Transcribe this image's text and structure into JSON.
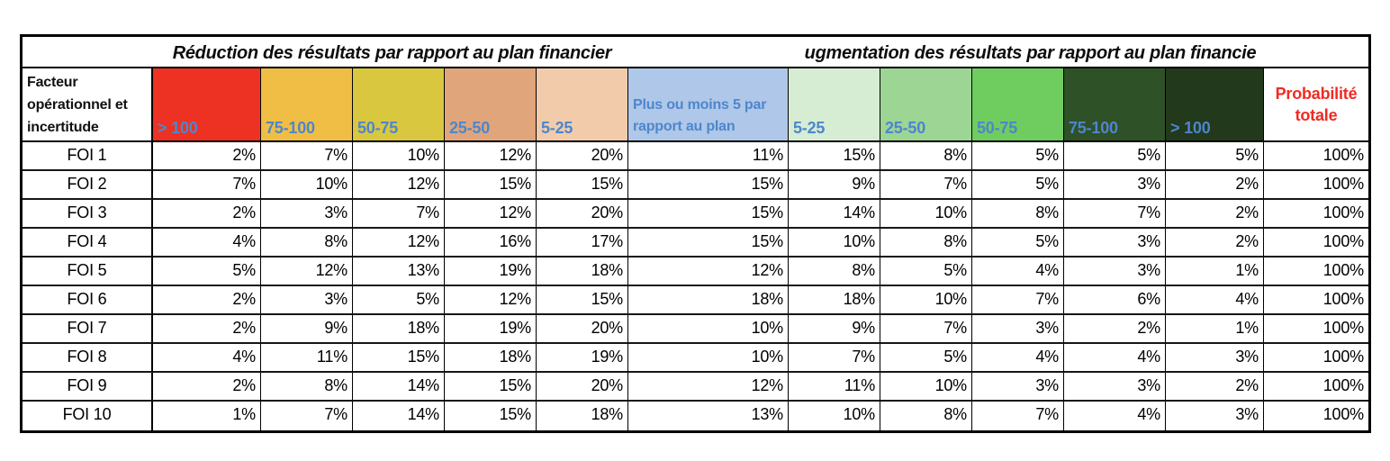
{
  "table": {
    "title_left": "Réduction des résultats par rapport au plan financier",
    "title_right": "ugmentation des résultats par rapport au plan financie",
    "corner_header": "Facteur opérationnel et incertitude",
    "total_header": "Probabilité totale",
    "columns": [
      {
        "label": "> 100",
        "bg": "#ed3223"
      },
      {
        "label": "75-100",
        "bg": "#f0be44"
      },
      {
        "label": "50-75",
        "bg": "#d9c83f"
      },
      {
        "label": "25-50",
        "bg": "#e1a57b"
      },
      {
        "label": "5-25",
        "bg": "#f2ccaa"
      },
      {
        "label": "Plus ou moins 5 par rapport au plan",
        "bg": "#afc7e8"
      },
      {
        "label": "5-25",
        "bg": "#d6edd3"
      },
      {
        "label": "25-50",
        "bg": "#9dd595"
      },
      {
        "label": "50-75",
        "bg": "#6fcd60"
      },
      {
        "label": "75-100",
        "bg": "#2f5127"
      },
      {
        "label": "> 100",
        "bg": "#22391c"
      }
    ],
    "rows": [
      {
        "label": "FOI 1",
        "cells": [
          "2%",
          "7%",
          "10%",
          "12%",
          "20%",
          "11%",
          "15%",
          "8%",
          "5%",
          "5%",
          "5%"
        ],
        "total": "100%"
      },
      {
        "label": "FOI 2",
        "cells": [
          "7%",
          "10%",
          "12%",
          "15%",
          "15%",
          "15%",
          "9%",
          "7%",
          "5%",
          "3%",
          "2%"
        ],
        "total": "100%"
      },
      {
        "label": "FOI 3",
        "cells": [
          "2%",
          "3%",
          "7%",
          "12%",
          "20%",
          "15%",
          "14%",
          "10%",
          "8%",
          "7%",
          "2%"
        ],
        "total": "100%"
      },
      {
        "label": "FOI 4",
        "cells": [
          "4%",
          "8%",
          "12%",
          "16%",
          "17%",
          "15%",
          "10%",
          "8%",
          "5%",
          "3%",
          "2%"
        ],
        "total": "100%"
      },
      {
        "label": "FOI 5",
        "cells": [
          "5%",
          "12%",
          "13%",
          "19%",
          "18%",
          "12%",
          "8%",
          "5%",
          "4%",
          "3%",
          "1%"
        ],
        "total": "100%"
      },
      {
        "label": "FOI 6",
        "cells": [
          "2%",
          "3%",
          "5%",
          "12%",
          "15%",
          "18%",
          "18%",
          "10%",
          "7%",
          "6%",
          "4%"
        ],
        "total": "100%"
      },
      {
        "label": "FOI 7",
        "cells": [
          "2%",
          "9%",
          "18%",
          "19%",
          "20%",
          "10%",
          "9%",
          "7%",
          "3%",
          "2%",
          "1%"
        ],
        "total": "100%"
      },
      {
        "label": "FOI 8",
        "cells": [
          "4%",
          "11%",
          "15%",
          "18%",
          "19%",
          "10%",
          "7%",
          "5%",
          "4%",
          "4%",
          "3%"
        ],
        "total": "100%"
      },
      {
        "label": "FOI 9",
        "cells": [
          "2%",
          "8%",
          "14%",
          "15%",
          "20%",
          "12%",
          "11%",
          "10%",
          "3%",
          "3%",
          "2%"
        ],
        "total": "100%"
      },
      {
        "label": "FOI 10",
        "cells": [
          "1%",
          "7%",
          "14%",
          "15%",
          "18%",
          "13%",
          "10%",
          "8%",
          "7%",
          "4%",
          "3%"
        ],
        "total": "100%"
      }
    ],
    "colors": {
      "header_text_blue": "#4e86cc",
      "total_text_red": "#ef2b22",
      "border_black": "#000000",
      "page_background": "#ffffff"
    }
  },
  "chart_data": {
    "type": "table",
    "title_left_band": "Réduction des résultats par rapport au plan financier",
    "title_right_band": "ugmentation des résultats par rapport au plan financie",
    "row_header": "Facteur opérationnel et incertitude",
    "columns": [
      "> 100",
      "75-100",
      "50-75",
      "25-50",
      "5-25",
      "Plus ou moins 5 par rapport au plan",
      "5-25",
      "25-50",
      "50-75",
      "75-100",
      "> 100",
      "Probabilité totale"
    ],
    "rows": [
      "FOI 1",
      "FOI 2",
      "FOI 3",
      "FOI 4",
      "FOI 5",
      "FOI 6",
      "FOI 7",
      "FOI 8",
      "FOI 9",
      "FOI 10"
    ],
    "values_percent": [
      [
        2,
        7,
        10,
        12,
        20,
        11,
        15,
        8,
        5,
        5,
        5,
        100
      ],
      [
        7,
        10,
        12,
        15,
        15,
        15,
        9,
        7,
        5,
        3,
        2,
        100
      ],
      [
        2,
        3,
        7,
        12,
        20,
        15,
        14,
        10,
        8,
        7,
        2,
        100
      ],
      [
        4,
        8,
        12,
        16,
        17,
        15,
        10,
        8,
        5,
        3,
        2,
        100
      ],
      [
        5,
        12,
        13,
        19,
        18,
        12,
        8,
        5,
        4,
        3,
        1,
        100
      ],
      [
        2,
        3,
        5,
        12,
        15,
        18,
        18,
        10,
        7,
        6,
        4,
        100
      ],
      [
        2,
        9,
        18,
        19,
        20,
        10,
        9,
        7,
        3,
        2,
        1,
        100
      ],
      [
        4,
        11,
        15,
        18,
        19,
        10,
        7,
        5,
        4,
        4,
        3,
        100
      ],
      [
        2,
        8,
        14,
        15,
        20,
        12,
        11,
        10,
        3,
        3,
        2,
        100
      ],
      [
        1,
        7,
        14,
        15,
        18,
        13,
        10,
        8,
        7,
        4,
        3,
        100
      ]
    ],
    "column_colors": [
      "#ed3223",
      "#f0be44",
      "#d9c83f",
      "#e1a57b",
      "#f2ccaa",
      "#afc7e8",
      "#d6edd3",
      "#9dd595",
      "#6fcd60",
      "#2f5127",
      "#22391c"
    ],
    "legend_position": "none",
    "grid": true
  }
}
